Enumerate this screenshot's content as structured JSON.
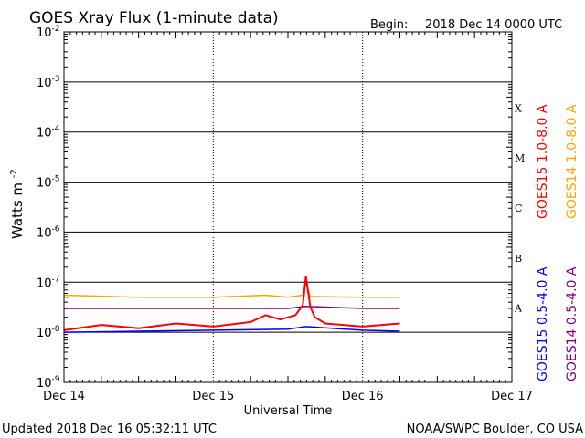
{
  "chart_data": {
    "type": "line",
    "title": "GOES Xray Flux (1-minute data)",
    "begin_label": "Begin:",
    "begin_value": "2018 Dec 14 0000 UTC",
    "xlabel": "Universal Time",
    "ylabel": "Watts m",
    "ylabel_exp": "-2",
    "y_scale": "log",
    "ylim": [
      1e-09,
      0.01
    ],
    "xlim_days": [
      0,
      3
    ],
    "x_ticks": [
      "Dec 14",
      "Dec 15",
      "Dec 16",
      "Dec 17"
    ],
    "y_ticks": [
      {
        "base": "10",
        "exp": "-9"
      },
      {
        "base": "10",
        "exp": "-8"
      },
      {
        "base": "10",
        "exp": "-7"
      },
      {
        "base": "10",
        "exp": "-6"
      },
      {
        "base": "10",
        "exp": "-5"
      },
      {
        "base": "10",
        "exp": "-4"
      },
      {
        "base": "10",
        "exp": "-3"
      },
      {
        "base": "10",
        "exp": "-2"
      }
    ],
    "flare_classes": [
      "A",
      "B",
      "C",
      "M",
      "X"
    ],
    "grid": "horizontal at each decade plus dotted day lines",
    "series": [
      {
        "name": "GOES15 1.0-8.0 A",
        "color": "#ff0000",
        "x": [
          0,
          0.25,
          0.5,
          0.75,
          1.0,
          1.25,
          1.35,
          1.45,
          1.55,
          1.6,
          1.62,
          1.65,
          1.68,
          1.75,
          2.0,
          2.25
        ],
        "y": [
          1.1e-08,
          1.4e-08,
          1.2e-08,
          1.5e-08,
          1.3e-08,
          1.6e-08,
          2.2e-08,
          1.8e-08,
          2.2e-08,
          3.5e-08,
          1.3e-07,
          3.2e-08,
          2e-08,
          1.5e-08,
          1.3e-08,
          1.5e-08
        ]
      },
      {
        "name": "GOES14 1.0-8.0 A",
        "color": "#ffa500",
        "x": [
          0,
          0.5,
          1.0,
          1.35,
          1.5,
          1.6,
          1.62,
          1.65,
          2.0,
          2.25
        ],
        "y": [
          5.5e-08,
          5e-08,
          5e-08,
          5.5e-08,
          5e-08,
          5.5e-08,
          1e-07,
          5.2e-08,
          5e-08,
          5e-08
        ]
      },
      {
        "name": "GOES15 0.5-4.0 A",
        "color": "#0000ff",
        "x": [
          0,
          0.5,
          1.0,
          1.5,
          1.62,
          2.0,
          2.25
        ],
        "y": [
          1e-08,
          1.05e-08,
          1.1e-08,
          1.15e-08,
          1.3e-08,
          1.1e-08,
          1.05e-08
        ]
      },
      {
        "name": "GOES14 0.5-4.0 A",
        "color": "#800080",
        "x": [
          0,
          0.5,
          1.0,
          1.5,
          1.62,
          2.0,
          2.25
        ],
        "y": [
          3e-08,
          3e-08,
          3e-08,
          3e-08,
          3.3e-08,
          3e-08,
          3e-08
        ]
      }
    ]
  },
  "footer": {
    "updated": "Updated 2018 Dec 16 05:32:11 UTC",
    "credit": "NOAA/SWPC Boulder, CO USA"
  }
}
